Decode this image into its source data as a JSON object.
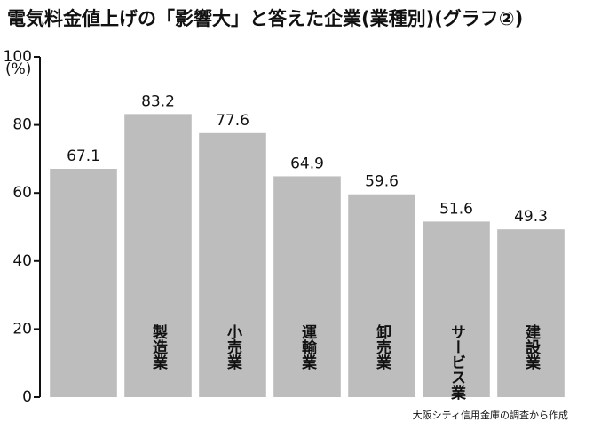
{
  "chart_data": {
    "type": "bar",
    "title": "電気料金値上げの「影響大」と答えた企業(業種別)(グラフ②)",
    "y_label": "(%)",
    "categories": [
      null,
      "製造業",
      "小売業",
      "運輸業",
      "卸売業",
      "サービス業",
      "建設業"
    ],
    "values": [
      67.1,
      83.2,
      77.6,
      64.9,
      59.6,
      51.6,
      49.3
    ],
    "color": "#bdbdbd",
    "ylim": [
      0,
      100
    ],
    "yticks": [
      0,
      20,
      40,
      60,
      80,
      100
    ],
    "source": "大阪シティ信用金庫の調査から作成"
  }
}
